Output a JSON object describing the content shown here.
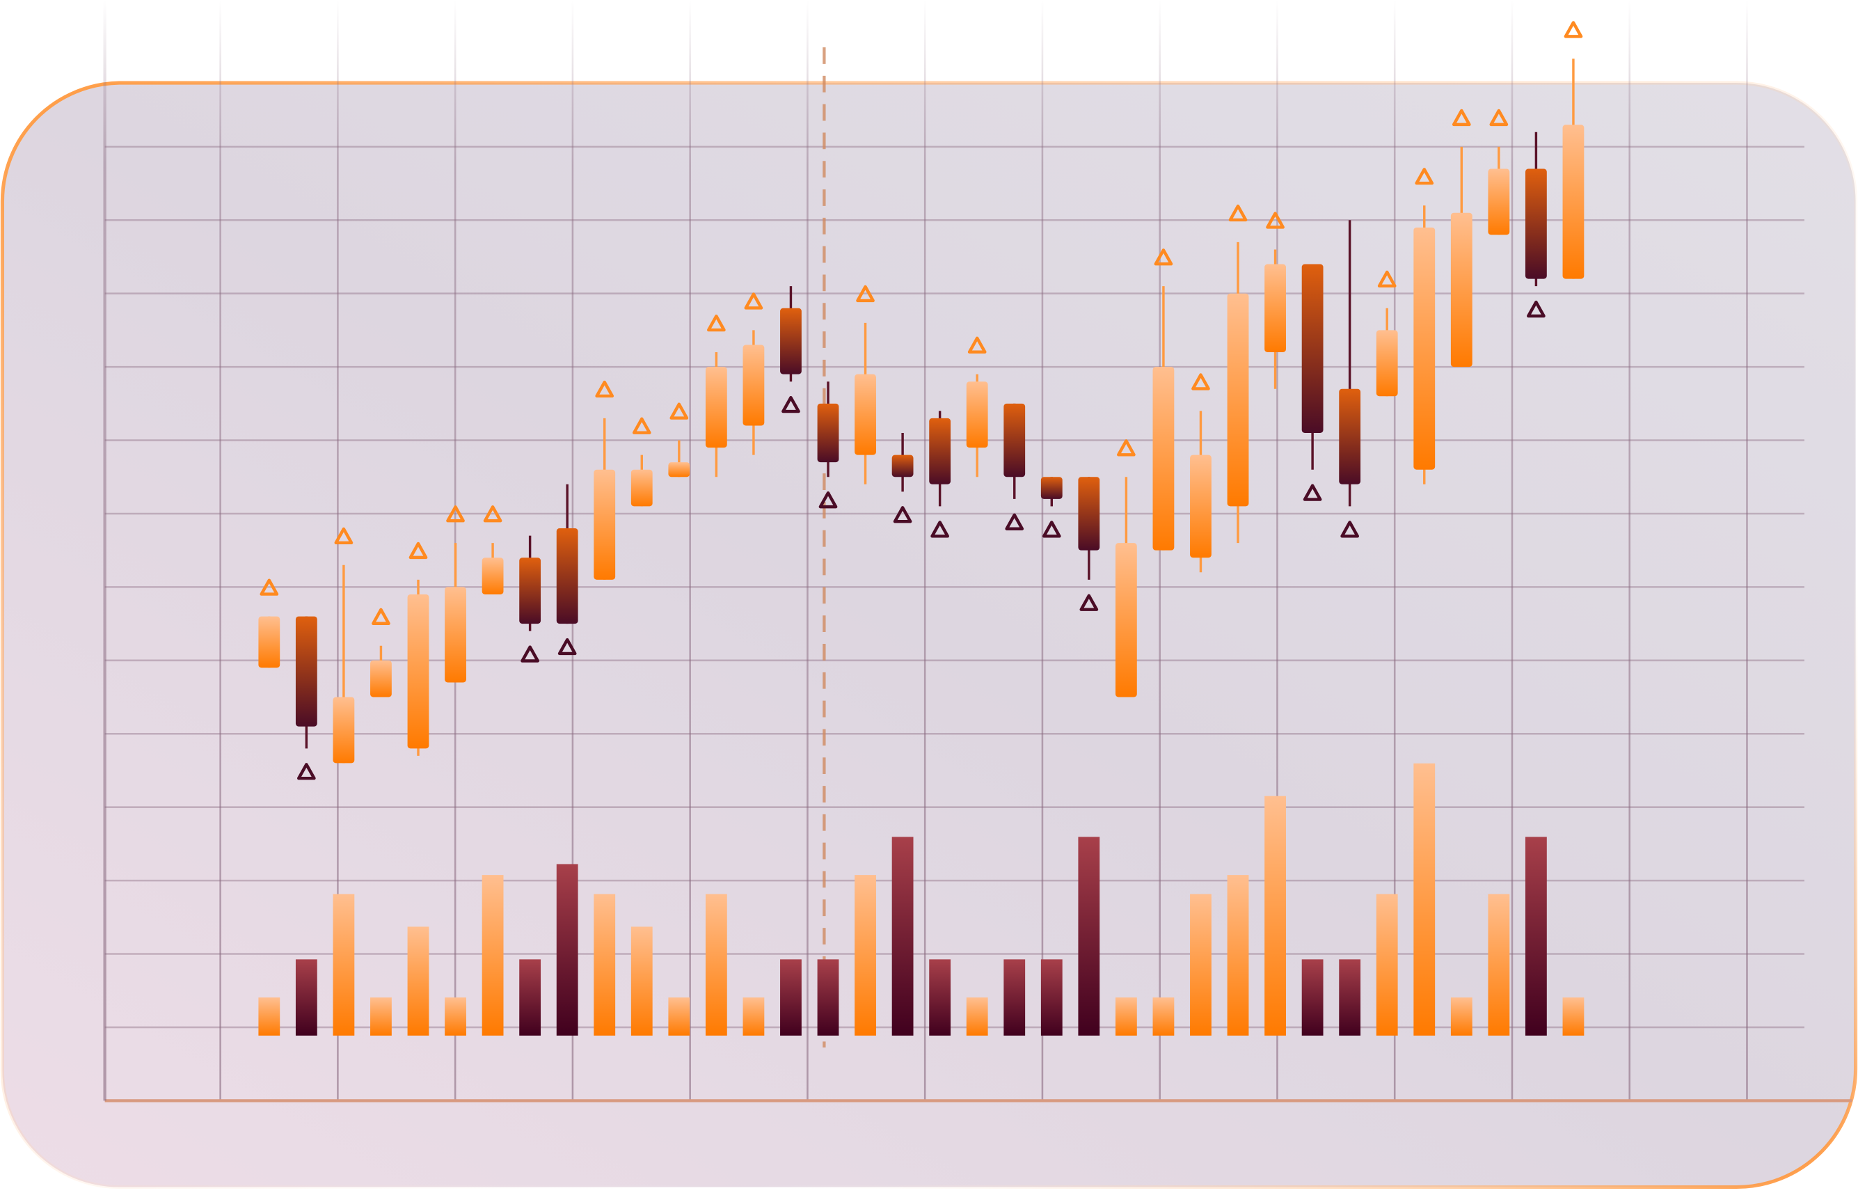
{
  "chart_data": {
    "type": "candlestick",
    "categories": [
      null,
      null,
      null,
      null,
      null,
      null,
      null,
      null,
      null,
      null,
      null,
      null,
      null,
      null,
      null,
      null,
      null,
      null,
      null,
      null,
      null,
      null,
      null,
      null,
      null,
      null,
      null,
      null,
      null,
      null,
      null,
      null,
      null,
      null,
      null,
      null
    ],
    "open": [
      5.9,
      6.6,
      4.6,
      5.5,
      4.8,
      5.7,
      6.9,
      7.4,
      7.8,
      7.1,
      8.1,
      8.5,
      8.9,
      9.2,
      10.8,
      9.5,
      8.8,
      8.8,
      9.3,
      8.9,
      9.5,
      8.5,
      8.5,
      5.5,
      7.5,
      7.4,
      8.1,
      10.2,
      11.4,
      9.7,
      9.6,
      8.6,
      10.0,
      11.8,
      12.7,
      11.2
    ],
    "high": [
      6.6,
      6.6,
      7.3,
      6.2,
      7.1,
      7.6,
      7.6,
      7.7,
      8.4,
      9.3,
      8.8,
      9.0,
      10.2,
      10.5,
      11.1,
      9.8,
      10.6,
      9.1,
      9.4,
      9.9,
      9.5,
      8.5,
      8.5,
      8.5,
      11.1,
      9.4,
      11.7,
      11.6,
      11.4,
      12.0,
      10.8,
      12.2,
      13.0,
      13.0,
      13.2,
      14.2
    ],
    "low": [
      5.9,
      4.8,
      4.6,
      5.5,
      4.7,
      5.7,
      6.9,
      6.4,
      6.5,
      7.1,
      8.1,
      8.5,
      8.5,
      8.8,
      9.8,
      8.5,
      8.4,
      8.3,
      8.1,
      8.5,
      8.2,
      8.1,
      7.1,
      5.5,
      7.5,
      7.2,
      7.6,
      9.7,
      8.6,
      8.1,
      9.6,
      8.4,
      10.0,
      11.8,
      11.1,
      11.2
    ],
    "close": [
      6.6,
      5.1,
      5.5,
      6.0,
      6.9,
      7.0,
      7.4,
      6.5,
      6.5,
      8.6,
      8.6,
      8.7,
      10.0,
      10.3,
      9.9,
      8.7,
      9.9,
      8.5,
      8.4,
      9.8,
      8.5,
      8.2,
      7.5,
      7.6,
      10.0,
      8.8,
      11.0,
      11.4,
      9.1,
      8.4,
      10.5,
      11.9,
      12.1,
      12.7,
      11.2,
      13.3
    ],
    "volume": [
      1.4,
      2.8,
      5.2,
      1.4,
      4.0,
      1.4,
      5.9,
      2.8,
      6.3,
      5.2,
      4.0,
      1.4,
      5.2,
      1.4,
      2.8,
      2.8,
      5.9,
      7.3,
      2.8,
      1.4,
      2.8,
      2.8,
      7.3,
      1.4,
      1.4,
      5.2,
      5.9,
      8.8,
      2.8,
      2.8,
      5.2,
      10.0,
      1.4,
      5.2,
      7.3,
      1.4
    ],
    "ylim": [
      0,
      15
    ],
    "y2lim": [
      0,
      10
    ],
    "up_color": "#ff7a00",
    "down_color": "#4a0c26",
    "grid": true
  }
}
